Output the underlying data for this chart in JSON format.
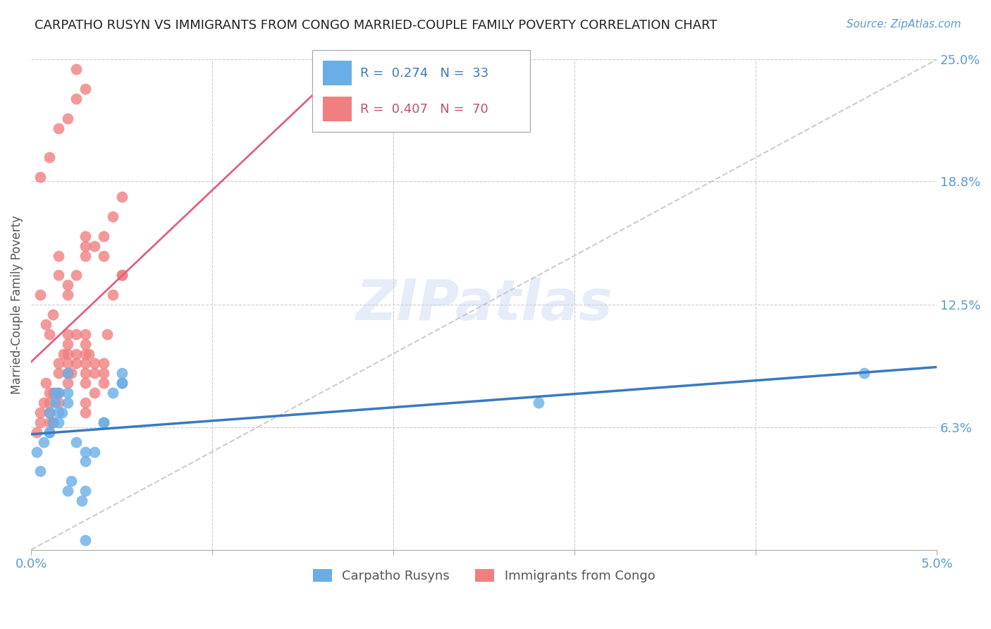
{
  "title": "CARPATHO RUSYN VS IMMIGRANTS FROM CONGO MARRIED-COUPLE FAMILY POVERTY CORRELATION CHART",
  "source": "Source: ZipAtlas.com",
  "ylabel": "Married-Couple Family Poverty",
  "xmin": 0.0,
  "xmax": 0.05,
  "ymin": 0.0,
  "ymax": 0.25,
  "legend_r1": "0.274",
  "legend_n1": "33",
  "legend_r2": "0.407",
  "legend_n2": "70",
  "color_blue": "#6aaee8",
  "color_pink": "#f08080",
  "color_trendline_blue": "#3a7abf",
  "color_trendline_pink": "#e06080",
  "color_diagonal": "#c0c0c0",
  "watermark": "ZIPatlas",
  "blue_x": [
    0.0003,
    0.0005,
    0.0007,
    0.001,
    0.001,
    0.001,
    0.0012,
    0.0013,
    0.0013,
    0.0015,
    0.0015,
    0.0015,
    0.0017,
    0.002,
    0.002,
    0.002,
    0.002,
    0.0022,
    0.0025,
    0.0028,
    0.003,
    0.003,
    0.003,
    0.003,
    0.0035,
    0.004,
    0.004,
    0.0045,
    0.005,
    0.005,
    0.005,
    0.046,
    0.028
  ],
  "blue_y": [
    0.05,
    0.04,
    0.055,
    0.06,
    0.07,
    0.06,
    0.065,
    0.075,
    0.08,
    0.07,
    0.08,
    0.065,
    0.07,
    0.075,
    0.09,
    0.08,
    0.03,
    0.035,
    0.055,
    0.025,
    0.03,
    0.005,
    0.05,
    0.045,
    0.05,
    0.065,
    0.065,
    0.08,
    0.085,
    0.085,
    0.09,
    0.09,
    0.075
  ],
  "pink_x": [
    0.0003,
    0.0005,
    0.0005,
    0.0007,
    0.001,
    0.001,
    0.001,
    0.001,
    0.0012,
    0.0012,
    0.0015,
    0.0015,
    0.0015,
    0.0015,
    0.0018,
    0.002,
    0.002,
    0.002,
    0.002,
    0.002,
    0.002,
    0.0022,
    0.0025,
    0.0025,
    0.0025,
    0.003,
    0.003,
    0.003,
    0.003,
    0.003,
    0.003,
    0.0032,
    0.0035,
    0.0035,
    0.004,
    0.004,
    0.004,
    0.0042,
    0.0045,
    0.005,
    0.005,
    0.0005,
    0.0008,
    0.001,
    0.0012,
    0.0015,
    0.0015,
    0.002,
    0.002,
    0.0025,
    0.003,
    0.003,
    0.003,
    0.0035,
    0.004,
    0.004,
    0.0045,
    0.005,
    0.0005,
    0.001,
    0.0015,
    0.002,
    0.0025,
    0.003,
    0.0025,
    0.003,
    0.003,
    0.0035,
    0.0008,
    0.0012
  ],
  "pink_y": [
    0.06,
    0.065,
    0.07,
    0.075,
    0.065,
    0.07,
    0.075,
    0.08,
    0.065,
    0.08,
    0.075,
    0.08,
    0.09,
    0.095,
    0.1,
    0.085,
    0.09,
    0.095,
    0.1,
    0.105,
    0.11,
    0.09,
    0.095,
    0.1,
    0.11,
    0.085,
    0.09,
    0.095,
    0.1,
    0.105,
    0.11,
    0.1,
    0.09,
    0.095,
    0.085,
    0.09,
    0.095,
    0.11,
    0.13,
    0.14,
    0.14,
    0.13,
    0.115,
    0.11,
    0.12,
    0.14,
    0.15,
    0.13,
    0.135,
    0.14,
    0.15,
    0.155,
    0.16,
    0.155,
    0.15,
    0.16,
    0.17,
    0.18,
    0.19,
    0.2,
    0.215,
    0.22,
    0.23,
    0.235,
    0.245,
    0.07,
    0.075,
    0.08,
    0.085,
    0.065
  ]
}
